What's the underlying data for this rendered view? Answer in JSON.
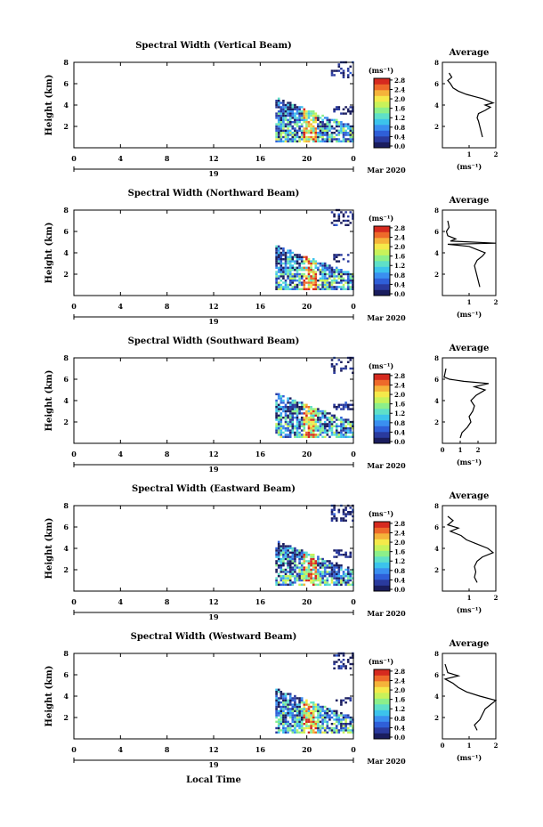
{
  "figure": {
    "bottom_label": "Local Time",
    "day_label": "19",
    "month_label": "Mar 2020",
    "time_ticks": [
      "0",
      "4",
      "8",
      "12",
      "16",
      "20",
      "0"
    ],
    "height_ticks": [
      "2",
      "4",
      "6",
      "8"
    ],
    "height_label": "Height (km)",
    "cbar_unit": "(ms⁻¹)",
    "cbar_ticks": [
      "0.0",
      "0.4",
      "0.8",
      "1.2",
      "1.6",
      "2.0",
      "2.4",
      "2.8"
    ],
    "avg_title": "Average",
    "avg_xlabel": "(ms⁻¹)",
    "colors": [
      "#1a1d5e",
      "#2a3a9e",
      "#2f5fd8",
      "#3a8ff0",
      "#3cc3ec",
      "#5fe0c8",
      "#8cef8a",
      "#c8f25a",
      "#f5e94a",
      "#f5b33a",
      "#ee6a2a",
      "#d62a1f"
    ]
  },
  "chart_data": [
    {
      "type": "heatmap",
      "title": "Spectral Width (Vertical Beam)",
      "xlabel": "Local Time",
      "ylabel": "Height (km)",
      "xlim": [
        0,
        24
      ],
      "ylim": [
        0,
        8
      ],
      "zlim": [
        0,
        2.8
      ],
      "avg": {
        "title": "Average",
        "xlim": [
          0,
          2
        ],
        "xticks": [
          "1",
          "2"
        ],
        "ylim": [
          0,
          8
        ],
        "profile": [
          [
            1.5,
            1.0
          ],
          [
            1.45,
            1.5
          ],
          [
            1.4,
            2.0
          ],
          [
            1.35,
            2.5
          ],
          [
            1.3,
            2.8
          ],
          [
            1.35,
            3.2
          ],
          [
            1.6,
            3.5
          ],
          [
            1.8,
            3.8
          ],
          [
            1.6,
            4.0
          ],
          [
            1.9,
            4.2
          ],
          [
            1.7,
            4.4
          ],
          [
            1.5,
            4.6
          ],
          [
            1.2,
            4.8
          ],
          [
            0.9,
            5.0
          ],
          [
            0.6,
            5.3
          ],
          [
            0.4,
            5.6
          ],
          [
            0.3,
            6.0
          ],
          [
            0.2,
            6.3
          ],
          [
            0.35,
            6.6
          ],
          [
            0.25,
            7.0
          ]
        ]
      }
    },
    {
      "type": "heatmap",
      "title": "Spectral Width (Northward Beam)",
      "xlabel": "Local Time",
      "ylabel": "Height (km)",
      "xlim": [
        0,
        24
      ],
      "ylim": [
        0,
        8
      ],
      "zlim": [
        0,
        2.8
      ],
      "avg": {
        "title": "Average",
        "xlim": [
          0,
          2
        ],
        "xticks": [
          "1",
          "2"
        ],
        "ylim": [
          0,
          8
        ],
        "profile": [
          [
            1.4,
            0.8
          ],
          [
            1.35,
            1.3
          ],
          [
            1.3,
            1.8
          ],
          [
            1.25,
            2.3
          ],
          [
            1.2,
            2.8
          ],
          [
            1.3,
            3.3
          ],
          [
            1.5,
            3.7
          ],
          [
            1.6,
            4.0
          ],
          [
            1.3,
            4.3
          ],
          [
            1.0,
            4.6
          ],
          [
            0.2,
            4.8
          ],
          [
            2.0,
            4.9
          ],
          [
            0.3,
            5.1
          ],
          [
            0.5,
            5.3
          ],
          [
            0.2,
            5.6
          ],
          [
            0.15,
            6.0
          ],
          [
            0.25,
            6.4
          ],
          [
            0.2,
            7.0
          ]
        ]
      }
    },
    {
      "type": "heatmap",
      "title": "Spectral Width (Southward Beam)",
      "xlabel": "Local Time",
      "ylabel": "Height (km)",
      "xlim": [
        0,
        24
      ],
      "ylim": [
        0,
        8
      ],
      "zlim": [
        0,
        2.8
      ],
      "avg": {
        "title": "Average",
        "xlim": [
          0,
          3
        ],
        "xticks": [
          "0",
          "1",
          "2"
        ],
        "ylim": [
          0,
          8
        ],
        "profile": [
          [
            1.0,
            0.5
          ],
          [
            1.1,
            1.0
          ],
          [
            1.4,
            1.5
          ],
          [
            1.6,
            2.0
          ],
          [
            1.5,
            2.5
          ],
          [
            1.7,
            3.0
          ],
          [
            1.8,
            3.5
          ],
          [
            1.6,
            4.0
          ],
          [
            1.9,
            4.5
          ],
          [
            2.4,
            5.0
          ],
          [
            1.8,
            5.3
          ],
          [
            2.6,
            5.6
          ],
          [
            1.2,
            5.8
          ],
          [
            0.4,
            6.0
          ],
          [
            0.1,
            6.2
          ],
          [
            0.2,
            7.0
          ]
        ]
      }
    },
    {
      "type": "heatmap",
      "title": "Spectral Width (Eastward Beam)",
      "xlabel": "Local Time",
      "ylabel": "Height (km)",
      "xlim": [
        0,
        24
      ],
      "ylim": [
        0,
        8
      ],
      "zlim": [
        0,
        2.8
      ],
      "avg": {
        "title": "Average",
        "xlim": [
          0,
          2
        ],
        "xticks": [
          "1",
          "2"
        ],
        "ylim": [
          0,
          8
        ],
        "profile": [
          [
            1.3,
            0.8
          ],
          [
            1.2,
            1.3
          ],
          [
            1.25,
            1.8
          ],
          [
            1.2,
            2.3
          ],
          [
            1.3,
            2.8
          ],
          [
            1.5,
            3.2
          ],
          [
            1.9,
            3.6
          ],
          [
            1.7,
            4.0
          ],
          [
            1.3,
            4.4
          ],
          [
            0.9,
            4.8
          ],
          [
            0.7,
            5.2
          ],
          [
            0.3,
            5.6
          ],
          [
            0.6,
            5.9
          ],
          [
            0.2,
            6.2
          ],
          [
            0.4,
            6.6
          ],
          [
            0.2,
            7.0
          ]
        ]
      }
    },
    {
      "type": "heatmap",
      "title": "Spectral Width (Westward Beam)",
      "xlabel": "Local Time",
      "ylabel": "Height (km)",
      "xlim": [
        0,
        24
      ],
      "ylim": [
        0,
        8
      ],
      "zlim": [
        0,
        2.8
      ],
      "avg": {
        "title": "Average",
        "xlim": [
          0,
          2
        ],
        "xticks": [
          "0",
          "1",
          "2"
        ],
        "ylim": [
          0,
          8
        ],
        "profile": [
          [
            1.3,
            0.8
          ],
          [
            1.2,
            1.3
          ],
          [
            1.4,
            1.8
          ],
          [
            1.5,
            2.3
          ],
          [
            1.6,
            2.8
          ],
          [
            1.8,
            3.2
          ],
          [
            2.0,
            3.6
          ],
          [
            1.4,
            4.0
          ],
          [
            0.9,
            4.4
          ],
          [
            0.6,
            4.8
          ],
          [
            0.4,
            5.2
          ],
          [
            0.1,
            5.6
          ],
          [
            0.6,
            5.9
          ],
          [
            0.2,
            6.2
          ],
          [
            0.1,
            7.0
          ]
        ]
      }
    }
  ]
}
